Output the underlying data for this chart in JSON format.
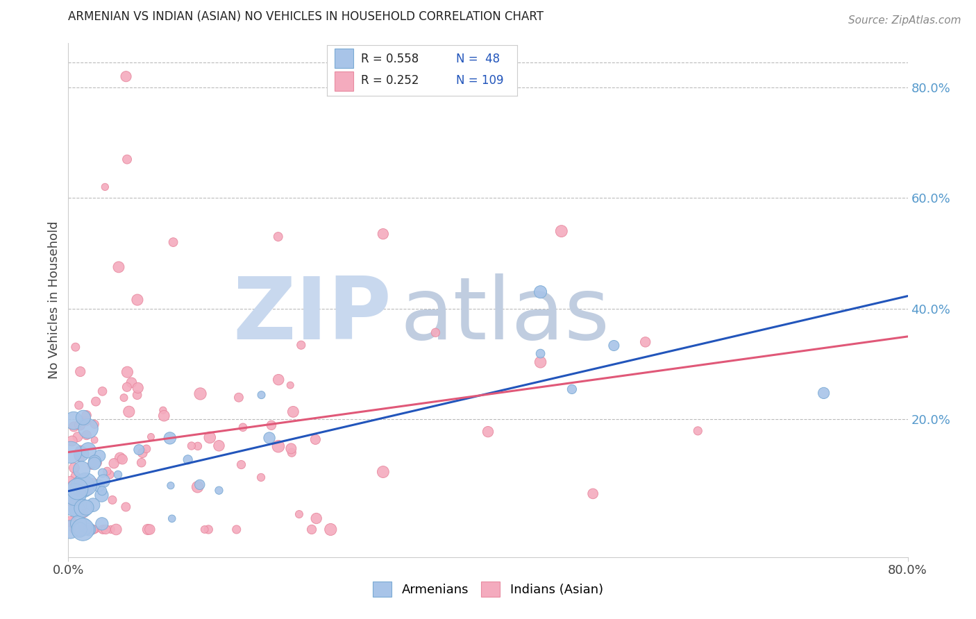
{
  "title": "ARMENIAN VS INDIAN (ASIAN) NO VEHICLES IN HOUSEHOLD CORRELATION CHART",
  "source": "Source: ZipAtlas.com",
  "ylabel": "No Vehicles in Household",
  "right_yticks": [
    "80.0%",
    "60.0%",
    "40.0%",
    "20.0%"
  ],
  "right_ytick_vals": [
    0.8,
    0.6,
    0.4,
    0.2
  ],
  "xlim": [
    0.0,
    0.8
  ],
  "ylim": [
    -0.05,
    0.88
  ],
  "armenian_color": "#A8C4E8",
  "armenian_edge": "#7AAAD4",
  "indian_color": "#F4ABBE",
  "indian_edge": "#E88AA0",
  "line_blue": "#2255BB",
  "line_pink": "#E05878",
  "watermark_zip": "#C8D8EE",
  "watermark_atlas": "#C0CDE0",
  "legend_r_armenian": "R = 0.558",
  "legend_n_armenian": "N =  48",
  "legend_r_indian": "R = 0.252",
  "legend_n_indian": "N = 109",
  "title_fontsize": 12,
  "tick_fontsize": 13,
  "source_fontsize": 11
}
